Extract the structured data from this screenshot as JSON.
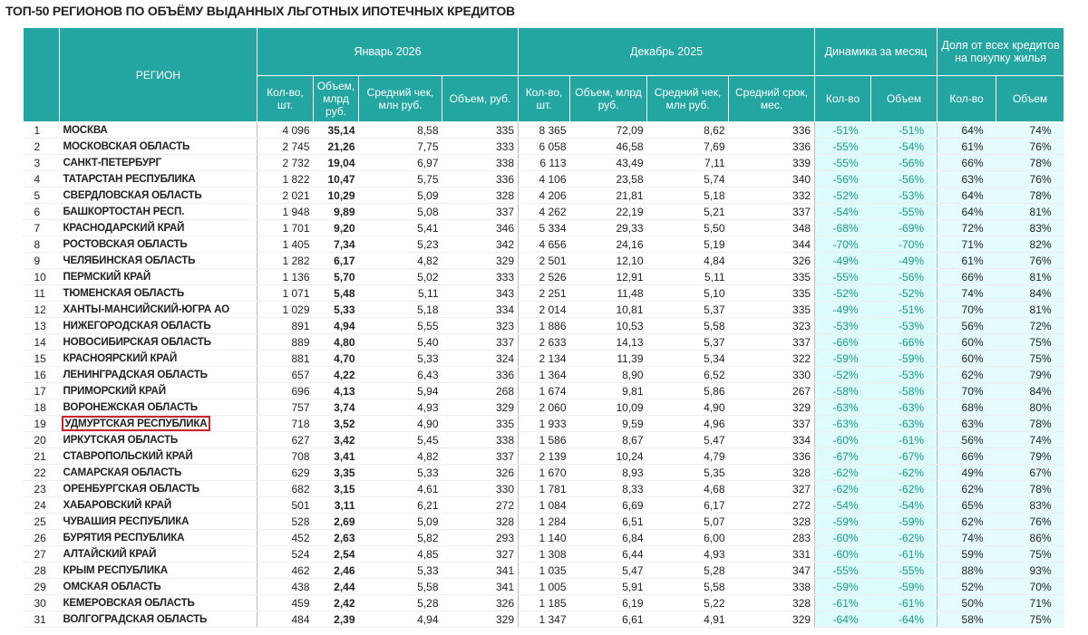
{
  "title": "ТОП-50 РЕГИОНОВ ПО ОБЪЁМУ ВЫДАННЫХ ЛЬГОТНЫХ ИПОТЕЧНЫХ КРЕДИТОВ",
  "header": {
    "region": "РЕГИОН",
    "groups": [
      "Январь 2026",
      "Декабрь 2025",
      "Динамика за месяц",
      "Доля от всех кредитов на покупку жилья"
    ],
    "columns": [
      "Кол-во, шт.",
      "Объем, млрд руб.",
      "Средний чек, млн руб.",
      "Объем, руб.",
      "Кол-во, шт.",
      "Объем, млрд руб.",
      "Средний чек, млн руб.",
      "Средний срок, мес.",
      "Кол-во",
      "Объем",
      "Кол-во",
      "Объем"
    ]
  },
  "table": {
    "rows": [
      [
        "1",
        "МОСКВА",
        "4 096",
        "35,14",
        "8,58",
        "335",
        "8 365",
        "72,09",
        "8,62",
        "336",
        "-51%",
        "-51%",
        "64%",
        "74%"
      ],
      [
        "2",
        "МОСКОВСКАЯ ОБЛАСТЬ",
        "2 745",
        "21,26",
        "7,75",
        "333",
        "6 058",
        "46,58",
        "7,69",
        "336",
        "-55%",
        "-54%",
        "61%",
        "76%"
      ],
      [
        "3",
        "САНКТ-ПЕТЕРБУРГ",
        "2 732",
        "19,04",
        "6,97",
        "338",
        "6 113",
        "43,49",
        "7,11",
        "339",
        "-55%",
        "-56%",
        "66%",
        "78%"
      ],
      [
        "4",
        "ТАТАРСТАН РЕСПУБЛИКА",
        "1 822",
        "10,47",
        "5,75",
        "336",
        "4 106",
        "23,58",
        "5,74",
        "340",
        "-56%",
        "-56%",
        "63%",
        "76%"
      ],
      [
        "5",
        "СВЕРДЛОВСКАЯ ОБЛАСТЬ",
        "2 021",
        "10,29",
        "5,09",
        "328",
        "4 206",
        "21,81",
        "5,18",
        "332",
        "-52%",
        "-53%",
        "64%",
        "78%"
      ],
      [
        "6",
        "БАШКОРТОСТАН РЕСП.",
        "1 948",
        "9,89",
        "5,08",
        "337",
        "4 262",
        "22,19",
        "5,21",
        "337",
        "-54%",
        "-55%",
        "64%",
        "81%"
      ],
      [
        "7",
        "КРАСНОДАРСКИЙ КРАЙ",
        "1 701",
        "9,20",
        "5,41",
        "346",
        "5 334",
        "29,33",
        "5,50",
        "348",
        "-68%",
        "-69%",
        "72%",
        "83%"
      ],
      [
        "8",
        "РОСТОВСКАЯ ОБЛАСТЬ",
        "1 405",
        "7,34",
        "5,23",
        "342",
        "4 656",
        "24,16",
        "5,19",
        "344",
        "-70%",
        "-70%",
        "71%",
        "82%"
      ],
      [
        "9",
        "ЧЕЛЯБИНСКАЯ ОБЛАСТЬ",
        "1 282",
        "6,17",
        "4,82",
        "329",
        "2 501",
        "12,10",
        "4,84",
        "326",
        "-49%",
        "-49%",
        "61%",
        "76%"
      ],
      [
        "10",
        "ПЕРМСКИЙ КРАЙ",
        "1 136",
        "5,70",
        "5,02",
        "333",
        "2 526",
        "12,91",
        "5,11",
        "335",
        "-55%",
        "-56%",
        "66%",
        "81%"
      ],
      [
        "11",
        "ТЮМЕНСКАЯ ОБЛАСТЬ",
        "1 071",
        "5,48",
        "5,11",
        "343",
        "2 251",
        "11,48",
        "5,10",
        "335",
        "-52%",
        "-52%",
        "74%",
        "84%"
      ],
      [
        "12",
        "ХАНТЫ-МАНСИЙСКИЙ-ЮГРА АО",
        "1 029",
        "5,33",
        "5,18",
        "334",
        "2 014",
        "10,81",
        "5,37",
        "335",
        "-49%",
        "-51%",
        "70%",
        "81%"
      ],
      [
        "13",
        "НИЖЕГОРОДСКАЯ ОБЛАСТЬ",
        "891",
        "4,94",
        "5,55",
        "323",
        "1 886",
        "10,53",
        "5,58",
        "323",
        "-53%",
        "-53%",
        "56%",
        "72%"
      ],
      [
        "14",
        "НОВОСИБИРСКАЯ ОБЛАСТЬ",
        "889",
        "4,80",
        "5,40",
        "337",
        "2 633",
        "14,13",
        "5,37",
        "337",
        "-66%",
        "-66%",
        "60%",
        "75%"
      ],
      [
        "15",
        "КРАСНОЯРСКИЙ КРАЙ",
        "881",
        "4,70",
        "5,33",
        "324",
        "2 134",
        "11,39",
        "5,34",
        "322",
        "-59%",
        "-59%",
        "60%",
        "75%"
      ],
      [
        "16",
        "ЛЕНИНГРАДСКАЯ ОБЛАСТЬ",
        "657",
        "4,22",
        "6,43",
        "336",
        "1 364",
        "8,90",
        "6,52",
        "330",
        "-52%",
        "-53%",
        "62%",
        "79%"
      ],
      [
        "17",
        "ПРИМОРСКИЙ КРАЙ",
        "696",
        "4,13",
        "5,94",
        "268",
        "1 674",
        "9,81",
        "5,86",
        "267",
        "-58%",
        "-58%",
        "70%",
        "84%"
      ],
      [
        "18",
        "ВОРОНЕЖСКАЯ ОБЛАСТЬ",
        "757",
        "3,74",
        "4,93",
        "329",
        "2 060",
        "10,09",
        "4,90",
        "329",
        "-63%",
        "-63%",
        "68%",
        "80%"
      ],
      [
        "19",
        "УДМУРТСКАЯ РЕСПУБЛИКА",
        "718",
        "3,52",
        "4,90",
        "335",
        "1 933",
        "9,59",
        "4,96",
        "337",
        "-63%",
        "-63%",
        "63%",
        "78%"
      ],
      [
        "20",
        "ИРКУТСКАЯ ОБЛАСТЬ",
        "627",
        "3,42",
        "5,45",
        "338",
        "1 586",
        "8,67",
        "5,47",
        "334",
        "-60%",
        "-61%",
        "56%",
        "74%"
      ],
      [
        "21",
        "СТАВРОПОЛЬСКИЙ КРАЙ",
        "708",
        "3,41",
        "4,82",
        "337",
        "2 139",
        "10,24",
        "4,79",
        "336",
        "-67%",
        "-67%",
        "66%",
        "79%"
      ],
      [
        "22",
        "САМАРСКАЯ ОБЛАСТЬ",
        "629",
        "3,35",
        "5,33",
        "326",
        "1 670",
        "8,93",
        "5,35",
        "328",
        "-62%",
        "-62%",
        "49%",
        "67%"
      ],
      [
        "23",
        "ОРЕНБУРГСКАЯ ОБЛАСТЬ",
        "682",
        "3,15",
        "4,61",
        "330",
        "1 781",
        "8,33",
        "4,68",
        "327",
        "-62%",
        "-62%",
        "62%",
        "78%"
      ],
      [
        "24",
        "ХАБАРОВСКИЙ КРАЙ",
        "501",
        "3,11",
        "6,21",
        "272",
        "1 084",
        "6,69",
        "6,17",
        "272",
        "-54%",
        "-54%",
        "65%",
        "83%"
      ],
      [
        "25",
        "ЧУВАШИЯ РЕСПУБЛИКА",
        "528",
        "2,69",
        "5,09",
        "328",
        "1 284",
        "6,51",
        "5,07",
        "328",
        "-59%",
        "-59%",
        "62%",
        "76%"
      ],
      [
        "26",
        "БУРЯТИЯ РЕСПУБЛИКА",
        "452",
        "2,63",
        "5,82",
        "293",
        "1 140",
        "6,84",
        "6,00",
        "283",
        "-60%",
        "-62%",
        "74%",
        "86%"
      ],
      [
        "27",
        "АЛТАЙСКИЙ КРАЙ",
        "524",
        "2,54",
        "4,85",
        "327",
        "1 308",
        "6,44",
        "4,93",
        "331",
        "-60%",
        "-61%",
        "59%",
        "75%"
      ],
      [
        "28",
        "КРЫМ РЕСПУБЛИКА",
        "462",
        "2,46",
        "5,33",
        "341",
        "1 035",
        "5,47",
        "5,28",
        "347",
        "-55%",
        "-55%",
        "88%",
        "93%"
      ],
      [
        "29",
        "ОМСКАЯ ОБЛАСТЬ",
        "438",
        "2,44",
        "5,58",
        "341",
        "1 005",
        "5,91",
        "5,58",
        "338",
        "-59%",
        "-59%",
        "52%",
        "70%"
      ],
      [
        "30",
        "КЕМЕРОВСКАЯ ОБЛАСТЬ",
        "459",
        "2,42",
        "5,28",
        "326",
        "1 185",
        "6,19",
        "5,22",
        "328",
        "-61%",
        "-61%",
        "50%",
        "71%"
      ],
      [
        "31",
        "ВОЛГОГРАДСКАЯ ОБЛАСТЬ",
        "484",
        "2,39",
        "4,94",
        "329",
        "1 347",
        "6,61",
        "4,91",
        "329",
        "-64%",
        "-64%",
        "58%",
        "75%"
      ]
    ]
  }
}
